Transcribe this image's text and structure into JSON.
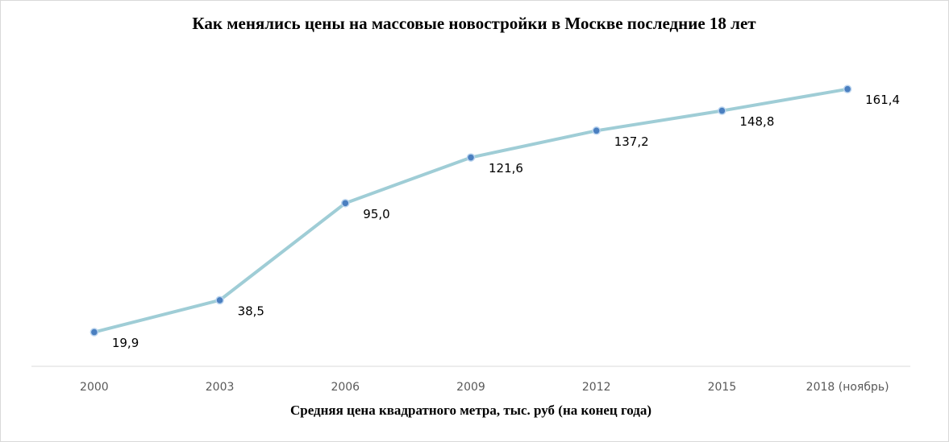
{
  "chart_data": {
    "type": "line",
    "title": "Как менялись цены на массовые новостройки  в Москве последние 18 лет",
    "x_label": "Средняя цена квадратного метра, тыс. руб (на конец года)",
    "categories": [
      "2000",
      "2003",
      "2006",
      "2009",
      "2012",
      "2015",
      "2018 (ноябрь)"
    ],
    "series": [
      {
        "name": "Средняя цена квадратного метра",
        "color": "#9fcdd6",
        "values": [
          19.9,
          38.5,
          95.0,
          121.6,
          137.2,
          148.8,
          161.4
        ],
        "value_labels": [
          "19,9",
          "38,5",
          "95,0",
          "121,6",
          "137,2",
          "148,8",
          "161,4"
        ]
      }
    ],
    "ylim": [
      0,
      180
    ]
  }
}
